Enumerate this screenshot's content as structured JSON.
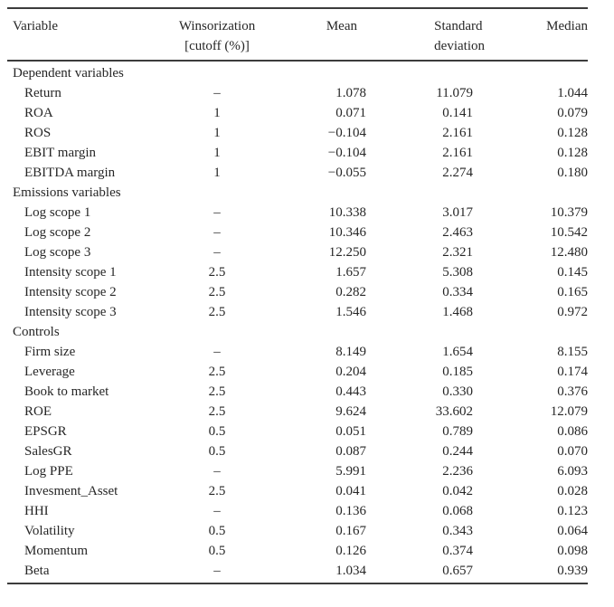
{
  "table": {
    "title_semantic": "summary-statistics-table",
    "header": {
      "variable": "Variable",
      "winsorization_line1": "Winsorization",
      "winsorization_line2": "[cutoff (%)]",
      "mean": "Mean",
      "std_line1": "Standard",
      "std_line2": "deviation",
      "median": "Median"
    },
    "sections": [
      {
        "label": "Dependent variables",
        "rows": [
          {
            "variable": "Return",
            "winsorization": "–",
            "mean": "1.078",
            "std": "11.079",
            "median": "1.044"
          },
          {
            "variable": "ROA",
            "winsorization": "1",
            "mean": "0.071",
            "std": "0.141",
            "median": "0.079"
          },
          {
            "variable": "ROS",
            "winsorization": "1",
            "mean": "−0.104",
            "std": "2.161",
            "median": "0.128"
          },
          {
            "variable": "EBIT margin",
            "winsorization": "1",
            "mean": "−0.104",
            "std": "2.161",
            "median": "0.128"
          },
          {
            "variable": "EBITDA margin",
            "winsorization": "1",
            "mean": "−0.055",
            "std": "2.274",
            "median": "0.180"
          }
        ]
      },
      {
        "label": "Emissions variables",
        "rows": [
          {
            "variable": "Log scope 1",
            "winsorization": "–",
            "mean": "10.338",
            "std": "3.017",
            "median": "10.379"
          },
          {
            "variable": "Log scope 2",
            "winsorization": "–",
            "mean": "10.346",
            "std": "2.463",
            "median": "10.542"
          },
          {
            "variable": "Log scope 3",
            "winsorization": "–",
            "mean": "12.250",
            "std": "2.321",
            "median": "12.480"
          },
          {
            "variable": "Intensity scope 1",
            "winsorization": "2.5",
            "mean": "1.657",
            "std": "5.308",
            "median": "0.145"
          },
          {
            "variable": "Intensity scope 2",
            "winsorization": "2.5",
            "mean": "0.282",
            "std": "0.334",
            "median": "0.165"
          },
          {
            "variable": "Intensity scope 3",
            "winsorization": "2.5",
            "mean": "1.546",
            "std": "1.468",
            "median": "0.972"
          }
        ]
      },
      {
        "label": "Controls",
        "rows": [
          {
            "variable": "Firm size",
            "winsorization": "–",
            "mean": "8.149",
            "std": "1.654",
            "median": "8.155"
          },
          {
            "variable": "Leverage",
            "winsorization": "2.5",
            "mean": "0.204",
            "std": "0.185",
            "median": "0.174"
          },
          {
            "variable": "Book to market",
            "winsorization": "2.5",
            "mean": "0.443",
            "std": "0.330",
            "median": "0.376"
          },
          {
            "variable": "ROE",
            "winsorization": "2.5",
            "mean": "9.624",
            "std": "33.602",
            "median": "12.079"
          },
          {
            "variable": "EPSGR",
            "winsorization": "0.5",
            "mean": "0.051",
            "std": "0.789",
            "median": "0.086"
          },
          {
            "variable": "SalesGR",
            "winsorization": "0.5",
            "mean": "0.087",
            "std": "0.244",
            "median": "0.070"
          },
          {
            "variable": "Log PPE",
            "winsorization": "–",
            "mean": "5.991",
            "std": "2.236",
            "median": "6.093"
          },
          {
            "variable": "Invesment_Asset",
            "winsorization": "2.5",
            "mean": "0.041",
            "std": "0.042",
            "median": "0.028"
          },
          {
            "variable": "HHI",
            "winsorization": "–",
            "mean": "0.136",
            "std": "0.068",
            "median": "0.123"
          },
          {
            "variable": "Volatility",
            "winsorization": "0.5",
            "mean": "0.167",
            "std": "0.343",
            "median": "0.064"
          },
          {
            "variable": "Momentum",
            "winsorization": "0.5",
            "mean": "0.126",
            "std": "0.374",
            "median": "0.098"
          },
          {
            "variable": "Beta",
            "winsorization": "–",
            "mean": "1.034",
            "std": "0.657",
            "median": "0.939"
          }
        ]
      }
    ]
  }
}
